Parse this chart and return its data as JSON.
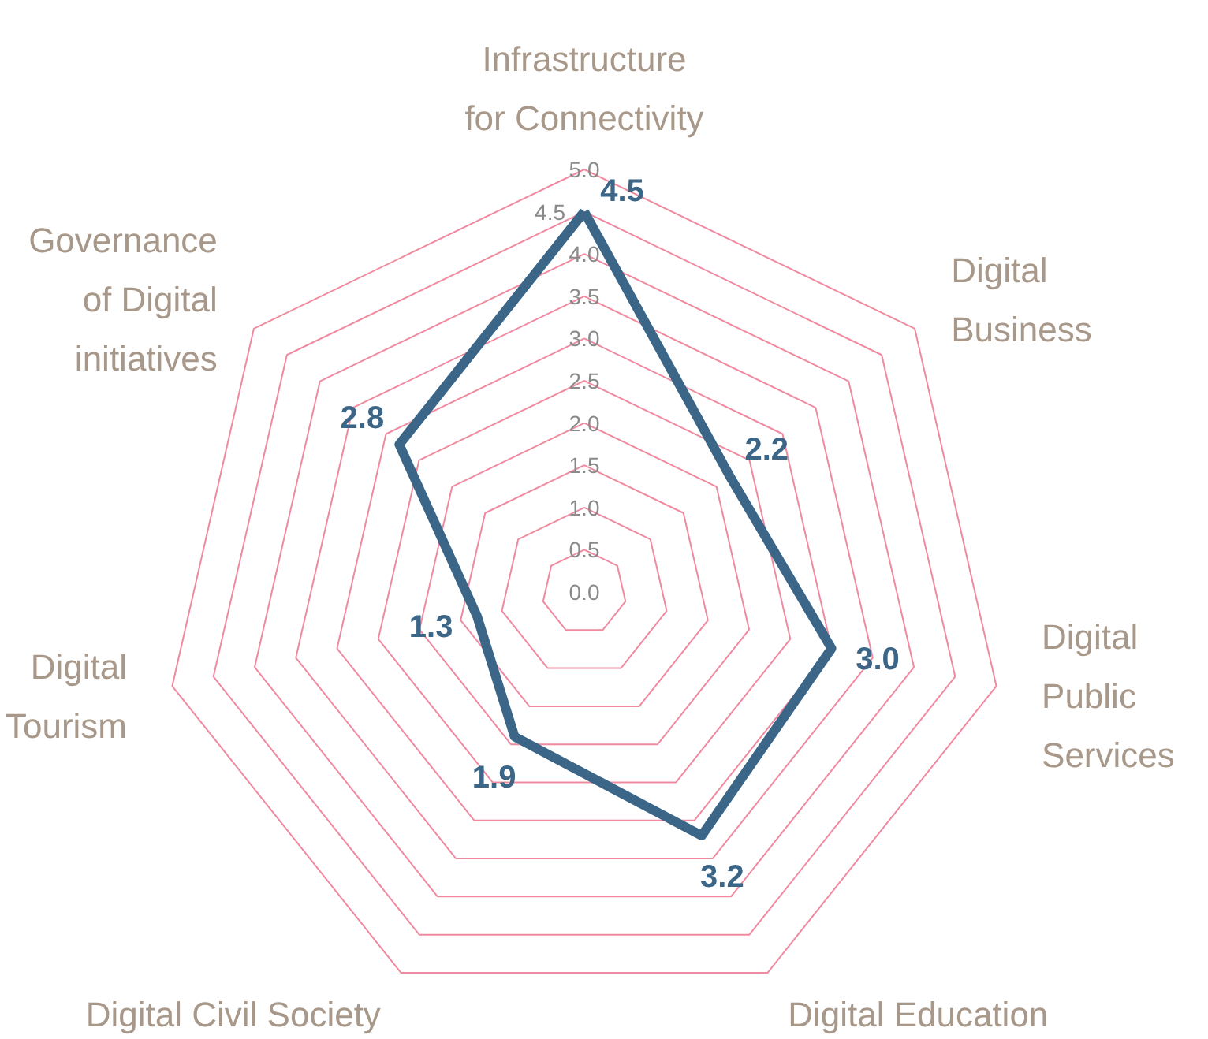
{
  "chart_data": {
    "type": "radar",
    "categories": [
      "Infrastructure\nfor Connectivity",
      "Digital\nBusiness",
      "Digital\nPublic\nServices",
      "Digital Education",
      "Digital Civil Society",
      "Digital\nTourism",
      "Governance\nof Digital\ninitiatives"
    ],
    "series": [
      {
        "color": "#3b6687",
        "values": [
          4.5,
          2.2,
          3.0,
          3.2,
          1.9,
          1.3,
          2.8
        ]
      }
    ],
    "value_labels": [
      "4.5",
      "2.2",
      "3.0",
      "3.2",
      "1.9",
      "1.3",
      "2.8"
    ],
    "ylim": [
      0,
      5
    ],
    "yticks": [
      {
        "value": 0,
        "label": "0.0"
      },
      {
        "value": 0.5,
        "label": "0.5"
      },
      {
        "value": 1,
        "label": "1.0"
      },
      {
        "value": 1.5,
        "label": "1.5"
      },
      {
        "value": 2,
        "label": "2.0"
      },
      {
        "value": 2.5,
        "label": "2.5"
      },
      {
        "value": 3,
        "label": "3.0"
      },
      {
        "value": 3.5,
        "label": "3.5"
      },
      {
        "value": 4,
        "label": "4.0"
      },
      {
        "value": 4.5,
        "label": "4.5"
      },
      {
        "value": 5,
        "label": "5.0"
      }
    ],
    "grid": true,
    "marker": "none",
    "line_style": "solid"
  }
}
